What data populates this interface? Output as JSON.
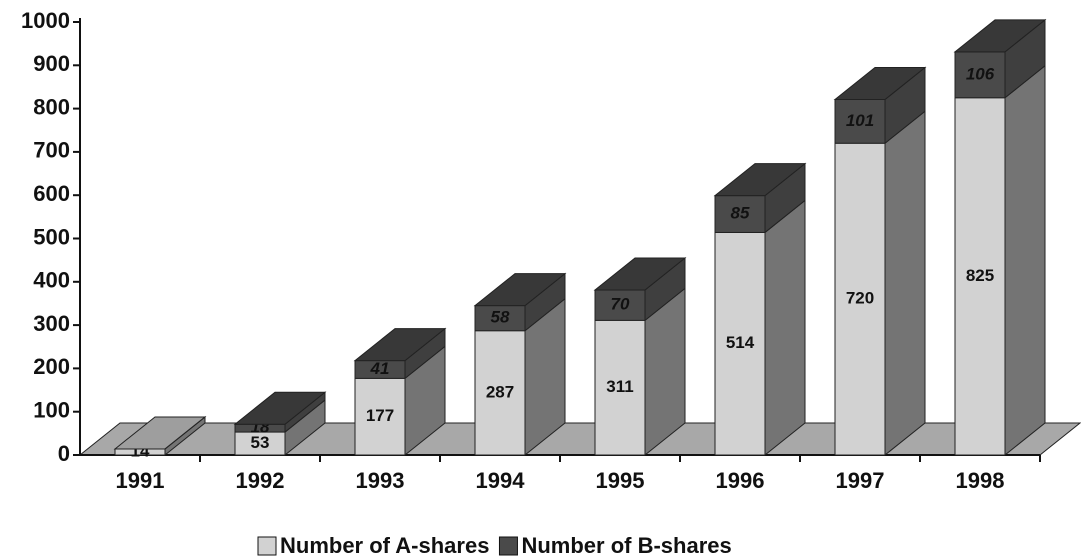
{
  "chart_data": {
    "type": "stacked-bar-3d",
    "categories": [
      "1991",
      "1992",
      "1993",
      "1994",
      "1995",
      "1996",
      "1997",
      "1998"
    ],
    "series": [
      {
        "name": "Number of A-shares",
        "color": "#d2d2d2",
        "values": [
          14,
          53,
          177,
          287,
          311,
          514,
          720,
          825
        ]
      },
      {
        "name": "Number of B-shares",
        "color": "#4a4a4a",
        "values": [
          null,
          18,
          41,
          58,
          70,
          85,
          101,
          106
        ]
      }
    ],
    "ylim": [
      0,
      1000
    ],
    "yticks": [
      0,
      100,
      200,
      300,
      400,
      500,
      600,
      700,
      800,
      900,
      1000
    ],
    "legend": "bottom"
  }
}
